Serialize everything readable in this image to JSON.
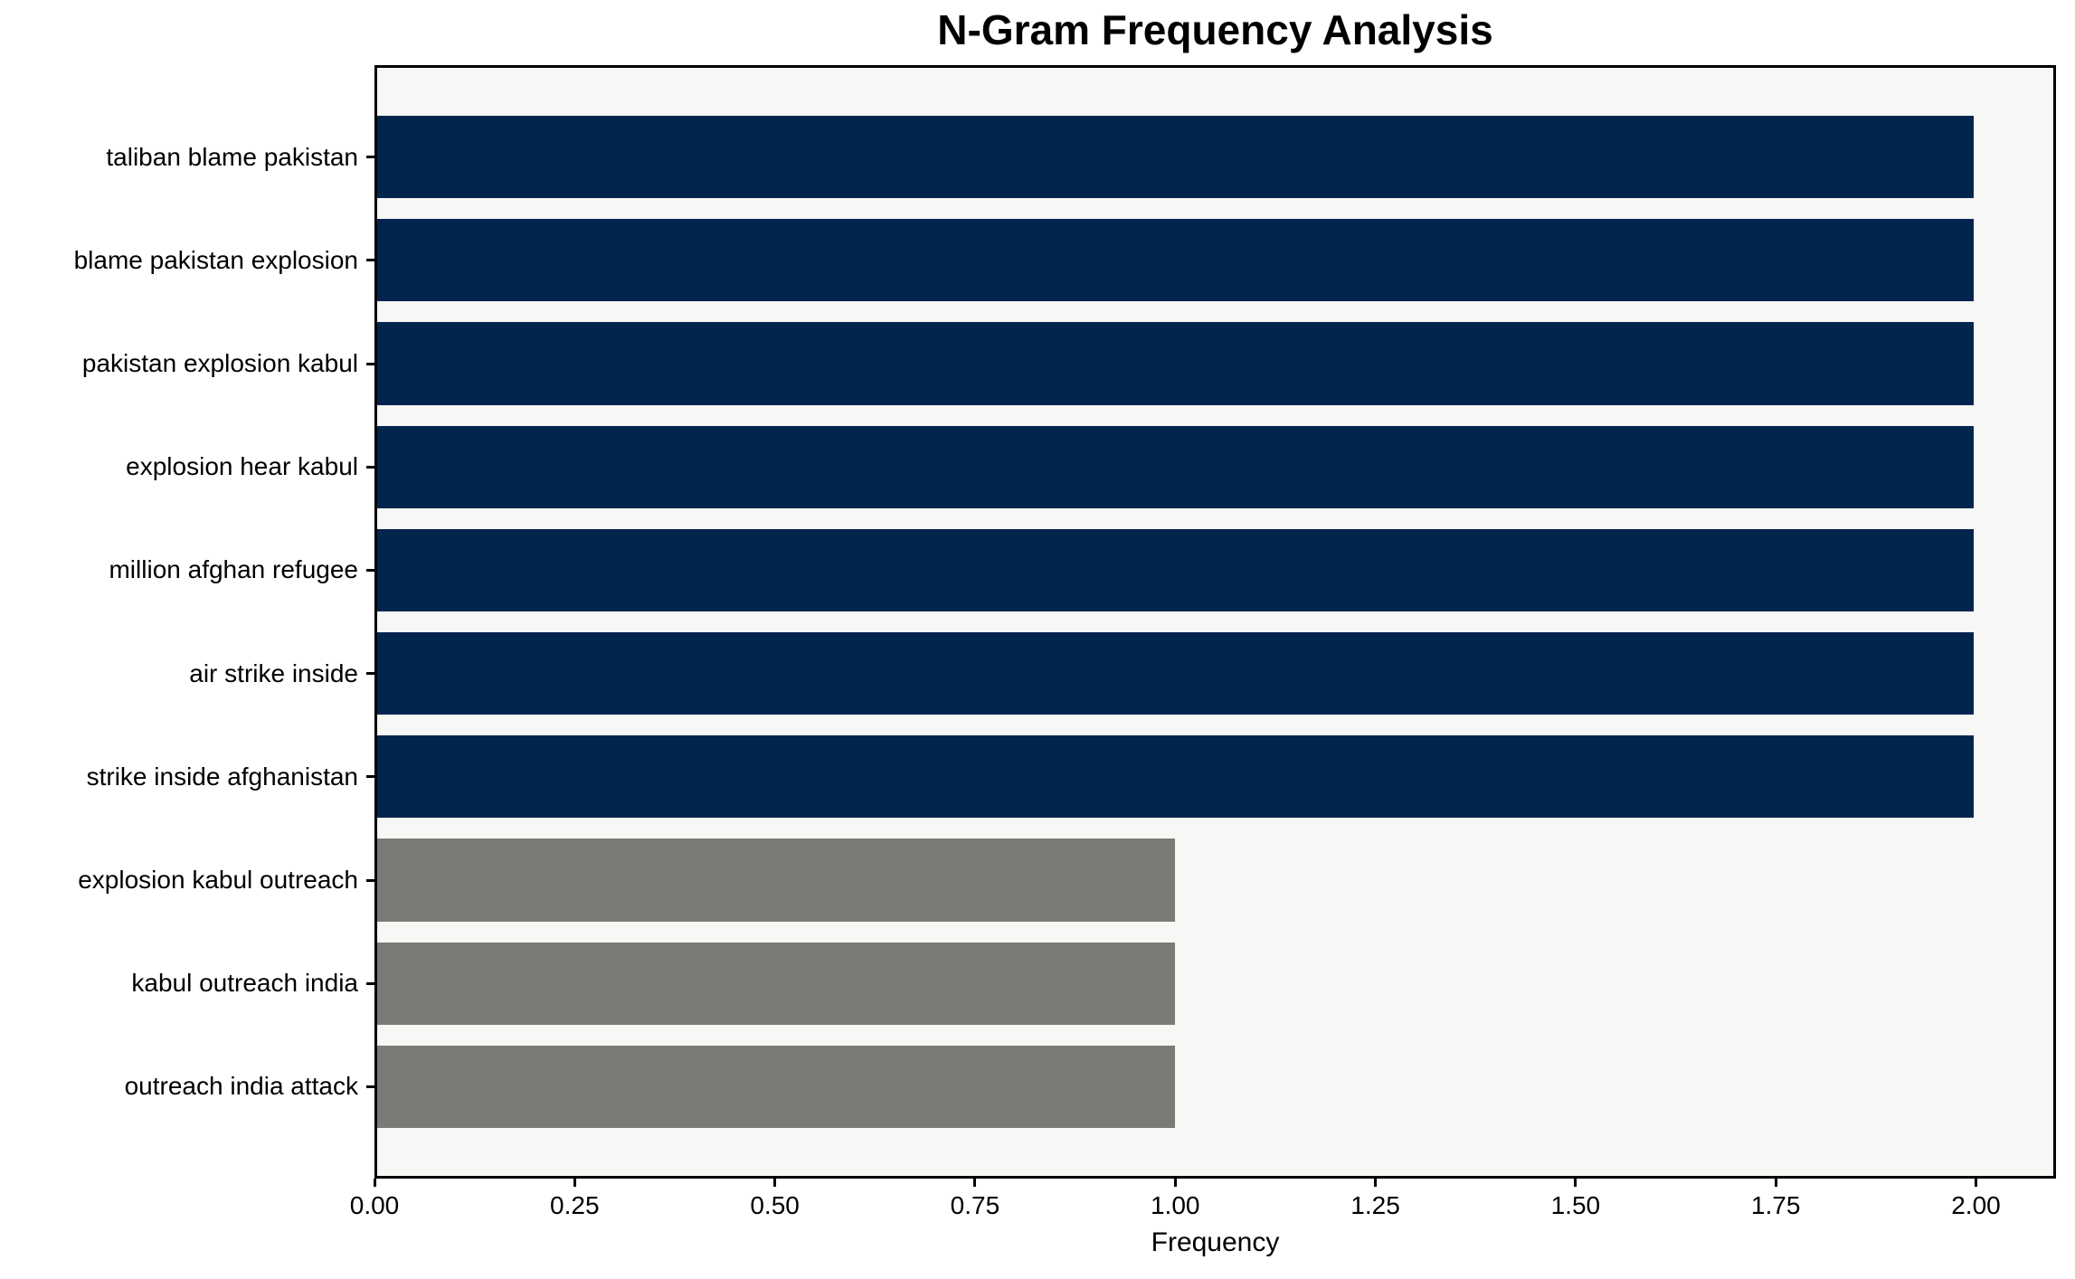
{
  "chart_data": {
    "type": "bar",
    "orientation": "horizontal",
    "title": "N-Gram Frequency Analysis",
    "xlabel": "Frequency",
    "ylabel": "",
    "categories": [
      "taliban blame pakistan",
      "blame pakistan explosion",
      "pakistan explosion kabul",
      "explosion hear kabul",
      "million afghan refugee",
      "air strike inside",
      "strike inside afghanistan",
      "explosion kabul outreach",
      "kabul outreach india",
      "outreach india attack"
    ],
    "values": [
      2,
      2,
      2,
      2,
      2,
      2,
      2,
      1,
      1,
      1
    ],
    "bar_colors": [
      "#02254e",
      "#02254e",
      "#02254e",
      "#02254e",
      "#02254e",
      "#02254e",
      "#02254e",
      "#7b7a77",
      "#7b7a77",
      "#7b7a77"
    ],
    "xlim": [
      0,
      2.1
    ],
    "x_tick_labels": [
      "0.00",
      "0.25",
      "0.50",
      "0.75",
      "1.00",
      "1.25",
      "1.50",
      "1.75",
      "2.00"
    ],
    "grid": false,
    "legend_position": "none"
  },
  "colors": {
    "navy_bar": "#02254e",
    "gray_bar": "#7b7a77",
    "plot_background": "#f7f7f5",
    "figure_background": "#ffffff",
    "spine": "#000000",
    "text": "#000000"
  }
}
